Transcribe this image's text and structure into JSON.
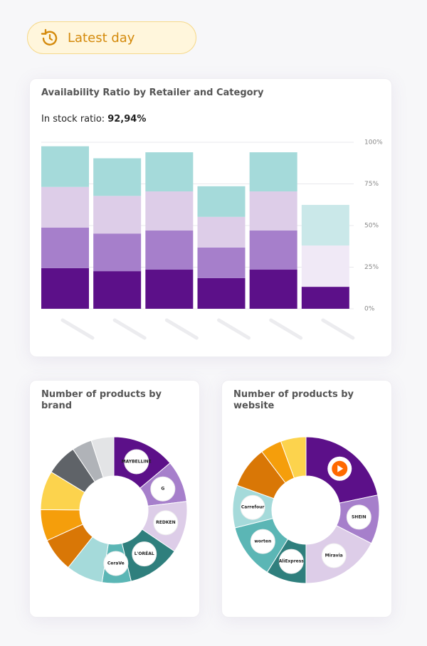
{
  "header": {
    "button": "Latest day"
  },
  "chart_data": [
    {
      "type": "bar",
      "stacked": true,
      "title": "Availability Ratio by Retailer and Category",
      "subtitle_label": "In stock ratio:",
      "subtitle_value": "92,94%",
      "categories": [
        null,
        null,
        null,
        null,
        null,
        null
      ],
      "series": [
        {
          "colors": [
            "#5c1089",
            "#5c1089",
            "#5c1089",
            "#5c1089",
            "#5c1089",
            "#5c1089"
          ],
          "values": [
            24.4,
            22.6,
            23.5,
            18.4,
            23.5,
            13.2
          ]
        },
        {
          "colors": [
            "#a67fcb",
            "#a67fcb",
            "#a67fcb",
            "#a67fcb",
            "#a67fcb",
            "#a67fcb"
          ],
          "values": [
            24.4,
            22.6,
            23.5,
            18.4,
            23.5,
            null
          ]
        },
        {
          "colors": [
            "#ddcde8",
            "#ddcde8",
            "#ddcde8",
            "#ddcde8",
            "#ddcde8",
            "#f0e9f6"
          ],
          "values": [
            24.4,
            22.6,
            23.5,
            18.4,
            23.5,
            24.8
          ]
        },
        {
          "colors": [
            "#a5dada",
            "#a5dada",
            "#a5dada",
            "#a5dada",
            "#a5dada",
            "#cae8e9"
          ],
          "values": [
            24.4,
            22.6,
            23.5,
            18.4,
            23.5,
            24.4
          ]
        }
      ],
      "ylim": [
        0,
        100
      ],
      "yticks": [
        {
          "value": 0,
          "label": "0%"
        },
        {
          "value": 25,
          "label": "25%"
        },
        {
          "value": 50,
          "label": "50%"
        },
        {
          "value": 75,
          "label": "75%"
        },
        {
          "value": 100,
          "label": "100%"
        }
      ],
      "grid": true
    },
    {
      "type": "pie",
      "donut": true,
      "title": "Number of products by brand",
      "categories": [
        "MAYBELLINE",
        "G",
        "REDKEN",
        "L'ORÉAL",
        "CeraVe",
        null,
        null,
        null,
        null,
        null,
        null,
        null
      ],
      "colors": [
        "#5c1089",
        "#a67fcb",
        "#ddcde8",
        "#2f7f7d",
        "#5bb6b5",
        "#a5dada",
        "#d97706",
        "#f59e0b",
        "#fcd34d",
        "#5f6368",
        "#b0b3b8",
        "#e3e4e6"
      ],
      "values": [
        13.9,
        9.2,
        11.4,
        11.7,
        6.4,
        8.1,
        7.5,
        6.9,
        8.6,
        6.9,
        4.4,
        5
      ]
    },
    {
      "type": "pie",
      "donut": true,
      "title": "Number of products by website",
      "categories": [
        null,
        "SHEIN",
        "Miravia",
        "AliExpress",
        "worten",
        "Carrefour",
        null,
        null,
        null
      ],
      "colors": [
        "#5c1089",
        "#a67fcb",
        "#ddcde8",
        "#2f7f7d",
        "#5bb6b5",
        "#a5dada",
        "#d97706",
        "#f59e0b",
        "#fcd34d"
      ],
      "values": [
        21.7,
        10.8,
        17.5,
        8.9,
        12.2,
        9.4,
        9.2,
        4.7,
        5.6
      ]
    }
  ]
}
